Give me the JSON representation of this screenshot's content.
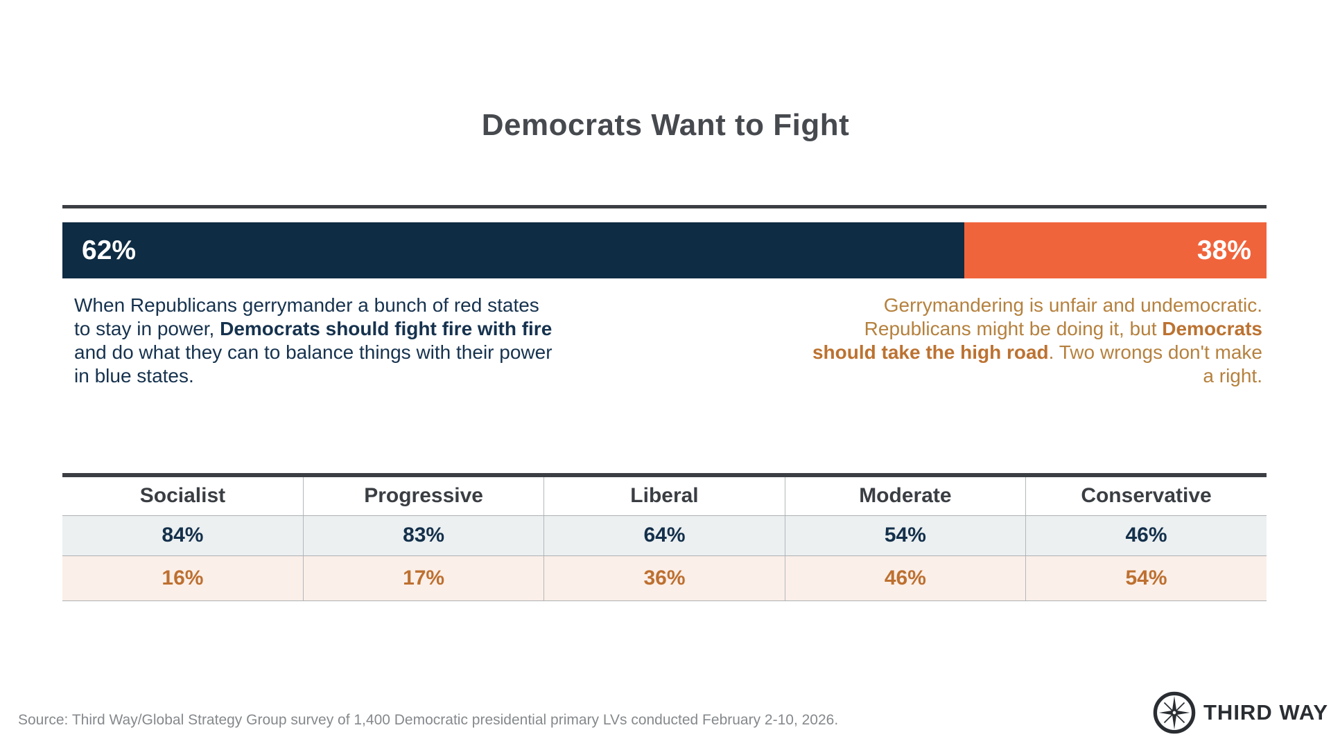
{
  "title": "Democrats Want to Fight",
  "chart_data": {
    "type": "bar",
    "title": "Democrats Want to Fight",
    "orientation": "horizontal-stacked",
    "series": [
      {
        "name": "Fight fire with fire",
        "value_pct": 62,
        "label": "62%",
        "color": "#0e2c43"
      },
      {
        "name": "Take the high road",
        "value_pct": 38,
        "label": "38%",
        "color": "#f0643c"
      }
    ],
    "display_widths_pct": [
      74.9,
      25.1
    ],
    "statements": {
      "left": {
        "pre": "When Republicans gerrymander a bunch of red states to stay in power, ",
        "bold": "Democrats should fight fire with fire",
        "post": " and do what they can to balance things with their power in blue states."
      },
      "right": {
        "pre": "Gerrymandering is unfair and undemocratic. Republicans might be doing it, but ",
        "bold": "Democrats should take the high road",
        "post": ". Two wrongs don't make a right."
      }
    },
    "table": {
      "columns": [
        "Socialist",
        "Progressive",
        "Liberal",
        "Moderate",
        "Conservative"
      ],
      "rows": [
        {
          "name": "fight-fire-with-fire",
          "color": "#14304b",
          "values": [
            "84%",
            "83%",
            "64%",
            "54%",
            "46%"
          ]
        },
        {
          "name": "take-the-high-road",
          "color": "#bd7030",
          "values": [
            "16%",
            "17%",
            "36%",
            "46%",
            "54%"
          ]
        }
      ]
    }
  },
  "footer": {
    "source": "Source: Third Way/Global Strategy Group survey of 1,400 Democratic presidential primary LVs conducted February 2-10, 2026.",
    "logo_text": "THIRD WAY"
  },
  "colors": {
    "navy": "#0e2c43",
    "orange": "#f0643c",
    "navy_row_bg": "#ecf0f1",
    "orange_row_bg": "#fbefe9",
    "orange_text": "#b5813e",
    "title_gray": "#46494e",
    "rule_dark": "#3b3f44",
    "source_gray": "#85898c"
  }
}
